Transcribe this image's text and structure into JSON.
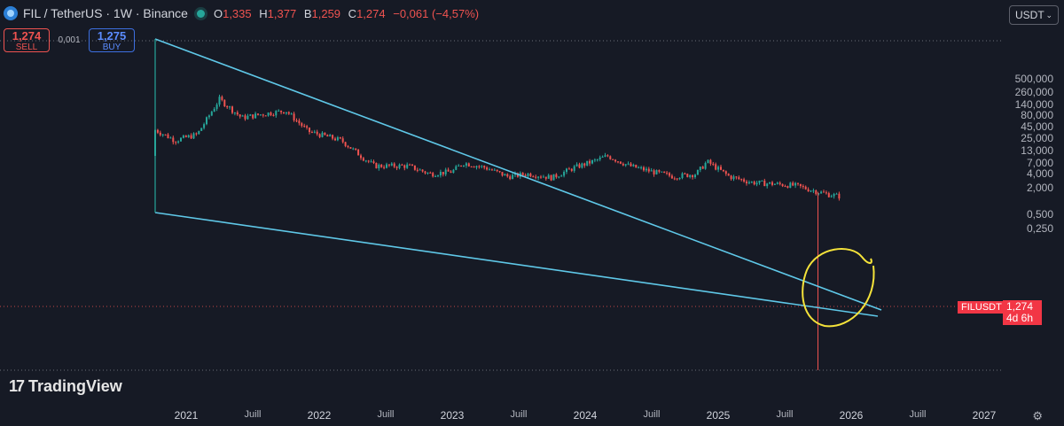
{
  "header": {
    "symbol_title": "FIL / TetherUS · 1W · Binance",
    "ohlc": [
      {
        "key": "O",
        "value": "1,335"
      },
      {
        "key": "H",
        "value": "1,377"
      },
      {
        "key": "B",
        "value": "1,259"
      },
      {
        "key": "C",
        "value": "1,274"
      }
    ],
    "change": "−0,061 (−4,57%)"
  },
  "trade": {
    "sell_price": "1,274",
    "sell_label": "SELL",
    "spread": "0,001",
    "buy_price": "1,275",
    "buy_label": "BUY"
  },
  "currency": "USDT",
  "price_label": {
    "symbol": "FILUSDT",
    "price": "1,274",
    "countdown": "4d 6h"
  },
  "brand": "TradingView",
  "colors": {
    "up": "#26a69a",
    "down": "#ef5350",
    "trendline": "#5fc8e8",
    "annotation": "#f5e33a",
    "background": "#161a25"
  },
  "chart_data": {
    "type": "candlestick",
    "timeframe": "1W",
    "y_scale": "log",
    "y_ticks": [
      "500,000",
      "260,000",
      "140,000",
      "80,000",
      "45,000",
      "25,000",
      "13,000",
      "7,000",
      "4,000",
      "2,000",
      "0,500",
      "0,250"
    ],
    "x_ticks": [
      "2021",
      "Juill",
      "2022",
      "Juill",
      "2023",
      "Juill",
      "2024",
      "Juill",
      "2025",
      "Juill",
      "2026",
      "Juill",
      "2027"
    ],
    "series": [
      {
        "x": "2020-10",
        "close": 40
      },
      {
        "x": "2020-12",
        "close": 22
      },
      {
        "x": "2021-02",
        "close": 30
      },
      {
        "x": "2021-04",
        "close": 180
      },
      {
        "x": "2021-06",
        "close": 70
      },
      {
        "x": "2021-08",
        "close": 85
      },
      {
        "x": "2021-10",
        "close": 100
      },
      {
        "x": "2021-12",
        "close": 35
      },
      {
        "x": "2022-03",
        "close": 22
      },
      {
        "x": "2022-05",
        "close": 9
      },
      {
        "x": "2022-06",
        "close": 6
      },
      {
        "x": "2022-09",
        "close": 6
      },
      {
        "x": "2022-11",
        "close": 4
      },
      {
        "x": "2023-01",
        "close": 4.5
      },
      {
        "x": "2023-02",
        "close": 7
      },
      {
        "x": "2023-04",
        "close": 5.5
      },
      {
        "x": "2023-06",
        "close": 3.5
      },
      {
        "x": "2023-08",
        "close": 4
      },
      {
        "x": "2023-10",
        "close": 3.3
      },
      {
        "x": "2023-12",
        "close": 5.5
      },
      {
        "x": "2024-02",
        "close": 8
      },
      {
        "x": "2024-03",
        "close": 10
      },
      {
        "x": "2024-05",
        "close": 6
      },
      {
        "x": "2024-07",
        "close": 4.5
      },
      {
        "x": "2024-09",
        "close": 3.5
      },
      {
        "x": "2024-11",
        "close": 4
      },
      {
        "x": "2024-12",
        "close": 7.5
      },
      {
        "x": "2025-02",
        "close": 3.5
      },
      {
        "x": "2025-04",
        "close": 2.6
      },
      {
        "x": "2025-06",
        "close": 2.4
      },
      {
        "x": "2025-08",
        "close": 2.2
      },
      {
        "x": "2025-10",
        "close": 1.6
      },
      {
        "x": "2025-11",
        "close": 1.4
      },
      {
        "x": "2025-12",
        "close": 1.274
      }
    ],
    "annotations": [
      "falling-wedge",
      "circle-highlight"
    ]
  }
}
